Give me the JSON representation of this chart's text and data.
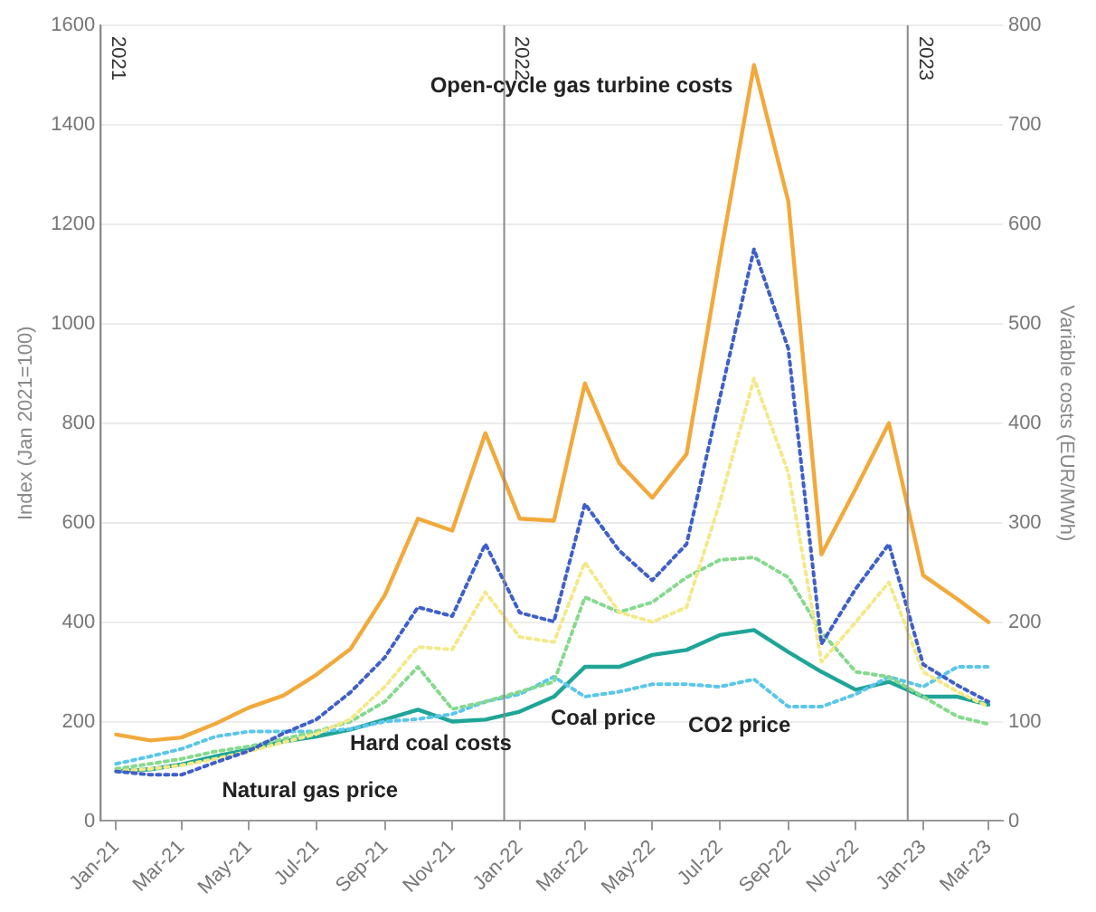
{
  "chart_data": {
    "type": "line",
    "ylabel": "Index (Jan 2021=100)",
    "y2label": "Variable costs (EUR/MWh)",
    "x": [
      "2021-01-15",
      "2021-02-15",
      "2021-03-15",
      "2021-04-15",
      "2021-05-15",
      "2021-06-15",
      "2021-07-15",
      "2021-08-15",
      "2021-09-15",
      "2021-10-15",
      "2021-11-15",
      "2021-12-15",
      "2022-01-15",
      "2022-02-15",
      "2022-03-15",
      "2022-04-15",
      "2022-05-15",
      "2022-06-15",
      "2022-07-15",
      "2022-08-15",
      "2022-09-15",
      "2022-10-15",
      "2022-11-15",
      "2022-12-15",
      "2023-01-15",
      "2023-02-15",
      "2023-03-15"
    ],
    "xlim": [
      "2021-01-01",
      "2023-03-28"
    ],
    "xticks": [
      {
        "value": "2021-01-15",
        "label": "Jan-21"
      },
      {
        "value": "2021-03-15",
        "label": "Mar-21"
      },
      {
        "value": "2021-05-15",
        "label": "May-21"
      },
      {
        "value": "2021-07-15",
        "label": "Jul-21"
      },
      {
        "value": "2021-09-15",
        "label": "Sep-21"
      },
      {
        "value": "2021-11-15",
        "label": "Nov-21"
      },
      {
        "value": "2022-01-15",
        "label": "Jan-22"
      },
      {
        "value": "2022-03-15",
        "label": "Mar-22"
      },
      {
        "value": "2022-05-15",
        "label": "May-22"
      },
      {
        "value": "2022-07-15",
        "label": "Jul-22"
      },
      {
        "value": "2022-09-15",
        "label": "Sep-22"
      },
      {
        "value": "2022-11-15",
        "label": "Nov-22"
      },
      {
        "value": "2023-01-15",
        "label": "Jan-23"
      },
      {
        "value": "2023-03-15",
        "label": "Mar-23"
      }
    ],
    "ylim": [
      0,
      1600
    ],
    "yticks": [
      0,
      200,
      400,
      600,
      800,
      1000,
      1200,
      1400,
      1600
    ],
    "y2lim": [
      0,
      800
    ],
    "y2ticks": [
      0,
      100,
      200,
      300,
      400,
      500,
      600,
      700,
      800
    ],
    "grid": "y",
    "legend": false,
    "marker": "none",
    "series": [
      {
        "color": "#f2a93b",
        "axis": "y2",
        "line_style": "solid",
        "values": [
          87,
          81,
          84,
          98,
          114,
          126,
          147,
          173,
          227,
          304,
          292,
          390,
          304,
          302,
          440,
          360,
          325,
          369,
          565,
          760,
          623,
          268,
          334,
          400,
          247,
          223,
          200
        ]
      },
      {
        "color": "#3f5fc8",
        "line_style": "dotted",
        "values": [
          100,
          93,
          93,
          118,
          141,
          176,
          204,
          259,
          329,
          430,
          412,
          557,
          419,
          401,
          638,
          544,
          484,
          557,
          850,
          1150,
          950,
          356,
          467,
          557,
          315,
          273,
          240
        ]
      },
      {
        "color": "#f3e98a",
        "line_style": "dotted",
        "values": [
          100,
          105,
          112,
          125,
          140,
          158,
          175,
          205,
          270,
          350,
          345,
          460,
          370,
          360,
          520,
          420,
          400,
          430,
          640,
          890,
          700,
          320,
          400,
          480,
          300,
          260,
          230
        ]
      },
      {
        "color": "#86d98e",
        "line_style": "dotted",
        "values": [
          105,
          115,
          125,
          140,
          150,
          165,
          180,
          200,
          240,
          310,
          225,
          240,
          260,
          280,
          450,
          420,
          440,
          490,
          525,
          530,
          490,
          380,
          300,
          290,
          250,
          210,
          195
        ]
      },
      {
        "color": "#5cc6ea",
        "line_style": "dotted",
        "values": [
          115,
          130,
          145,
          170,
          180,
          180,
          180,
          185,
          200,
          205,
          215,
          240,
          255,
          290,
          250,
          260,
          275,
          275,
          270,
          285,
          230,
          230,
          255,
          290,
          270,
          310,
          310
        ]
      },
      {
        "color": "#1fa597",
        "axis": "y2",
        "line_style": "solid",
        "values": [
          50,
          52,
          57,
          65,
          72,
          80,
          85,
          92,
          102,
          112,
          100,
          102,
          110,
          125,
          155,
          155,
          167,
          172,
          187,
          192,
          170,
          150,
          132,
          140,
          125,
          125,
          117
        ]
      }
    ],
    "ref_lines": [
      {
        "axis": "x",
        "value": "2021-01-01",
        "label": "2021",
        "color": "#8a8a8a"
      },
      {
        "axis": "x",
        "value": "2022-01-01",
        "label": "2022",
        "color": "#8a8a8a"
      },
      {
        "axis": "x",
        "value": "2023-01-01",
        "label": "2023",
        "color": "#8a8a8a"
      }
    ],
    "annotations": [
      "Open-cycle gas turbine costs",
      "Natural gas price",
      "Hard coal costs",
      "Coal price",
      "CO2 price"
    ]
  }
}
